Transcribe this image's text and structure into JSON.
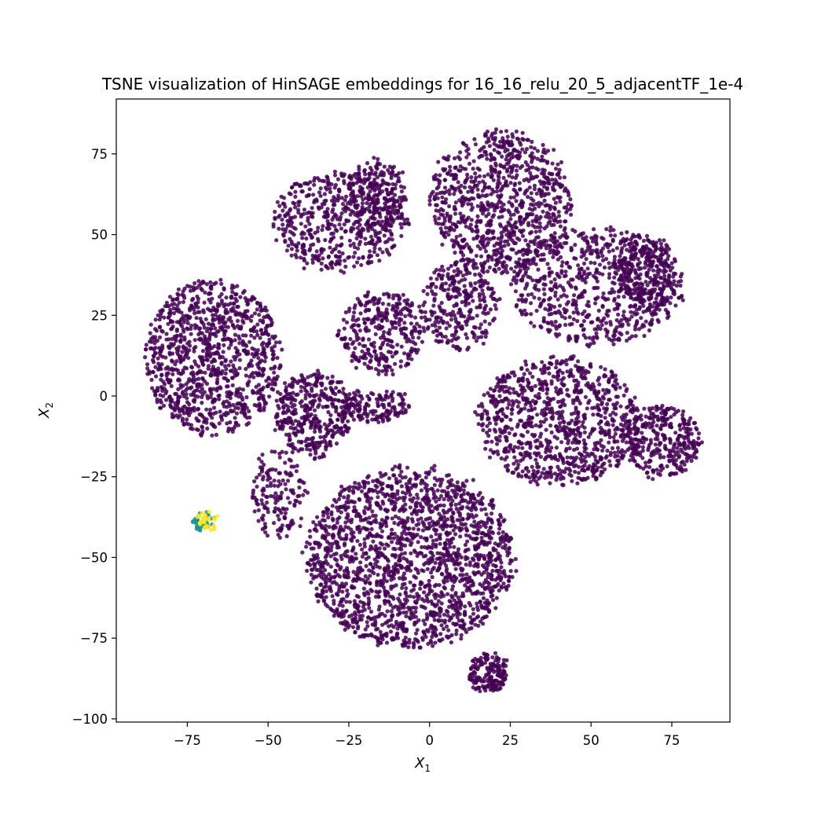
{
  "chart_data": {
    "type": "scatter",
    "title": "TSNE visualization of HinSAGE embeddings for 16_16_relu_20_5_adjacentTF_1e-4",
    "xlabel": "X",
    "xlabel_sub": "1",
    "ylabel": "X",
    "ylabel_sub": "2",
    "xlim": [
      -97,
      93
    ],
    "ylim": [
      -101,
      92
    ],
    "grid": false,
    "xticks": [
      -75,
      -50,
      -25,
      0,
      25,
      50,
      75
    ],
    "xtick_labels": [
      "−75",
      "−50",
      "−25",
      "0",
      "25",
      "50",
      "75"
    ],
    "yticks": [
      75,
      50,
      25,
      0,
      -25,
      -50,
      -75,
      -100
    ],
    "ytick_labels": [
      "75",
      "50",
      "25",
      "0",
      "−25",
      "−50",
      "−75",
      "−100"
    ],
    "colors": {
      "majority": "#440154",
      "minority_teal": "#21918c",
      "minority_yellow": "#fde725",
      "axes": "#000000"
    },
    "clusters": [
      {
        "name": "top-left-upper",
        "cx": -28,
        "cy": 54,
        "rx": 21,
        "ry": 15,
        "n": 520,
        "color": "majority"
      },
      {
        "name": "top-center-blob",
        "cx": -16,
        "cy": 62,
        "rx": 9,
        "ry": 11,
        "n": 220,
        "color": "majority"
      },
      {
        "name": "top-right-large",
        "cx": 22,
        "cy": 60,
        "rx": 22,
        "ry": 22,
        "n": 900,
        "color": "majority"
      },
      {
        "name": "right-upper",
        "cx": 52,
        "cy": 34,
        "rx": 27,
        "ry": 18,
        "n": 700,
        "color": "majority"
      },
      {
        "name": "right-upper-edge",
        "cx": 67,
        "cy": 38,
        "rx": 9,
        "ry": 12,
        "n": 260,
        "color": "majority"
      },
      {
        "name": "center-triangle",
        "cx": -15,
        "cy": 20,
        "rx": 13,
        "ry": 13,
        "n": 330,
        "color": "majority"
      },
      {
        "name": "center-right-stem",
        "cx": 9,
        "cy": 28,
        "rx": 12,
        "ry": 14,
        "n": 300,
        "color": "majority"
      },
      {
        "name": "left-large",
        "cx": -67,
        "cy": 12,
        "rx": 21,
        "ry": 24,
        "n": 1050,
        "color": "majority"
      },
      {
        "name": "left-center",
        "cx": -36,
        "cy": -6,
        "rx": 12,
        "ry": 13,
        "n": 380,
        "color": "majority"
      },
      {
        "name": "center-tongue",
        "cx": -18,
        "cy": -3,
        "rx": 12,
        "ry": 5,
        "n": 170,
        "color": "majority"
      },
      {
        "name": "right-center",
        "cx": 40,
        "cy": -8,
        "rx": 25,
        "ry": 20,
        "n": 950,
        "color": "majority"
      },
      {
        "name": "far-right-lobe",
        "cx": 72,
        "cy": -14,
        "rx": 12,
        "ry": 11,
        "n": 330,
        "color": "majority"
      },
      {
        "name": "bottom-large",
        "cx": -6,
        "cy": -50,
        "rx": 32,
        "ry": 28,
        "n": 1900,
        "color": "majority"
      },
      {
        "name": "bottom-left-arm",
        "cx": -47,
        "cy": -30,
        "rx": 8,
        "ry": 14,
        "n": 160,
        "color": "majority"
      },
      {
        "name": "bottom-small-island",
        "cx": 18,
        "cy": -86,
        "rx": 6,
        "ry": 6,
        "n": 170,
        "color": "majority"
      },
      {
        "name": "minority-cluster-teal",
        "cx": -70,
        "cy": -39,
        "rx": 3,
        "ry": 2.5,
        "n": 40,
        "color": "minority_teal"
      },
      {
        "name": "minority-cluster-yellow",
        "cx": -69,
        "cy": -39,
        "rx": 3,
        "ry": 3,
        "n": 30,
        "color": "minority_yellow"
      }
    ]
  }
}
